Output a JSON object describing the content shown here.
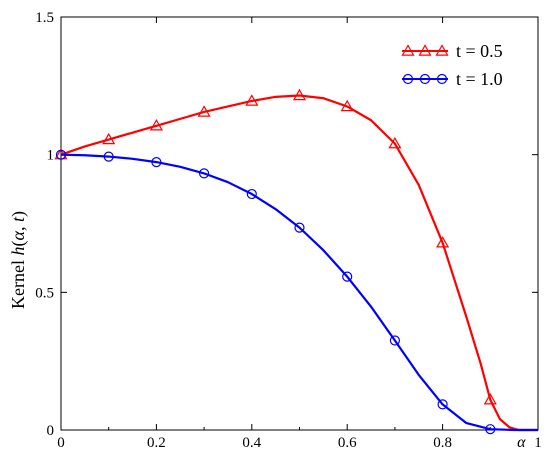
{
  "chart_data": {
    "type": "line",
    "xlabel": "α",
    "ylabel_parts": [
      "Kernel ",
      "h",
      "(",
      "α",
      ", ",
      "t",
      ")"
    ],
    "xlim": [
      0,
      1
    ],
    "ylim": [
      0,
      1.5
    ],
    "x_ticks": [
      0,
      0.2,
      0.4,
      0.6,
      0.8,
      1
    ],
    "x_tick_labels": [
      "0",
      "0.2",
      "0.4",
      "0.6",
      "0.8",
      "1"
    ],
    "y_ticks": [
      0,
      0.5,
      1,
      1.5
    ],
    "y_tick_labels": [
      "0",
      "0.5",
      "1",
      "1.5"
    ],
    "grid": false,
    "legend_position": "top-right",
    "series": [
      {
        "name": "t = 0.5",
        "color": "#ff0000",
        "marker": "triangle",
        "x": [
          0,
          0.05,
          0.1,
          0.15,
          0.2,
          0.25,
          0.3,
          0.35,
          0.4,
          0.45,
          0.5,
          0.55,
          0.6,
          0.65,
          0.7,
          0.75,
          0.8,
          0.85,
          0.88,
          0.9,
          0.92,
          0.94,
          0.96,
          1.0
        ],
        "y": [
          1.0,
          1.03,
          1.055,
          1.08,
          1.105,
          1.13,
          1.155,
          1.175,
          1.195,
          1.21,
          1.215,
          1.205,
          1.175,
          1.125,
          1.04,
          0.89,
          0.68,
          0.41,
          0.24,
          0.11,
          0.04,
          0.01,
          0.0,
          0.0
        ],
        "marker_x": [
          0,
          0.1,
          0.2,
          0.3,
          0.4,
          0.5,
          0.6,
          0.7,
          0.8,
          0.9
        ],
        "marker_y": [
          1.0,
          1.055,
          1.105,
          1.155,
          1.195,
          1.215,
          1.175,
          1.04,
          0.68,
          0.11
        ]
      },
      {
        "name": "t = 1.0",
        "color": "#0000ff",
        "marker": "circle",
        "x": [
          0,
          0.05,
          0.1,
          0.15,
          0.2,
          0.25,
          0.3,
          0.35,
          0.4,
          0.45,
          0.5,
          0.55,
          0.6,
          0.65,
          0.7,
          0.75,
          0.8,
          0.85,
          0.9,
          0.95,
          1.0
        ],
        "y": [
          1.0,
          0.998,
          0.993,
          0.985,
          0.973,
          0.956,
          0.932,
          0.9,
          0.857,
          0.802,
          0.735,
          0.653,
          0.557,
          0.448,
          0.325,
          0.2,
          0.093,
          0.025,
          0.003,
          0.0,
          0.0
        ],
        "marker_x": [
          0,
          0.1,
          0.2,
          0.3,
          0.4,
          0.5,
          0.6,
          0.7,
          0.8,
          0.9
        ],
        "marker_y": [
          1.0,
          0.993,
          0.973,
          0.932,
          0.857,
          0.735,
          0.557,
          0.325,
          0.093,
          0.003
        ]
      }
    ]
  }
}
